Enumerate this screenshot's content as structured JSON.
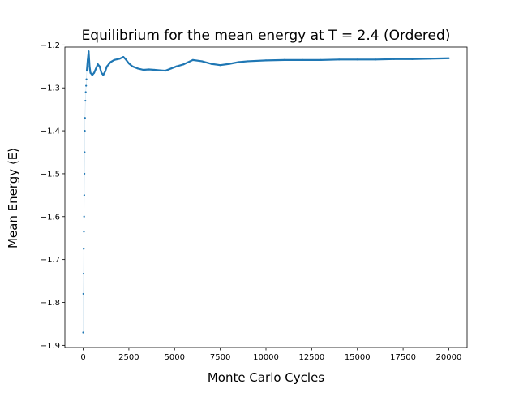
{
  "chart_data": {
    "type": "scatter",
    "title": "Equilibrium for the mean energy at T = 2.4 (Ordered)",
    "xlabel": "Monte Carlo Cycles",
    "ylabel": "Mean Energy ⟨E⟩",
    "xlim": [
      -1000,
      21000
    ],
    "ylim": [
      -1.905,
      -1.205
    ],
    "x_ticks": [
      0,
      2500,
      5000,
      7500,
      10000,
      12500,
      15000,
      17500,
      20000
    ],
    "y_ticks": [
      -1.9,
      -1.8,
      -1.7,
      -1.6,
      -1.5,
      -1.4,
      -1.3,
      -1.2
    ],
    "y_tick_labels": [
      "−1.9",
      "−1.8",
      "−1.7",
      "−1.6",
      "−1.5",
      "−1.4",
      "−1.3",
      "−1.2"
    ],
    "grid": false,
    "legend": "none",
    "color": "#1f77b4",
    "series": [
      {
        "x": [
          0,
          10,
          20,
          30,
          40,
          50,
          60,
          70,
          80,
          90,
          100,
          120,
          140,
          160,
          180,
          200,
          250,
          300,
          350,
          400,
          500,
          600,
          700,
          800,
          900,
          1000,
          1100,
          1200,
          1300,
          1400,
          1500,
          1700,
          1900,
          2000,
          2200,
          2300,
          2500,
          2700,
          3000,
          3300,
          3600,
          3900,
          4200,
          4500,
          4800,
          5100,
          5500,
          6000,
          6500,
          7000,
          7500,
          8000,
          8500,
          9000,
          10000,
          11000,
          12000,
          13000,
          14000,
          15000,
          16000,
          17000,
          18000,
          19000,
          20000
        ],
        "y": [
          -1.87,
          -1.78,
          -1.733,
          -1.675,
          -1.635,
          -1.6,
          -1.55,
          -1.5,
          -1.45,
          -1.4,
          -1.37,
          -1.33,
          -1.31,
          -1.295,
          -1.28,
          -1.26,
          -1.235,
          -1.215,
          -1.25,
          -1.265,
          -1.27,
          -1.265,
          -1.255,
          -1.245,
          -1.25,
          -1.265,
          -1.27,
          -1.262,
          -1.25,
          -1.245,
          -1.24,
          -1.235,
          -1.233,
          -1.232,
          -1.228,
          -1.232,
          -1.243,
          -1.25,
          -1.255,
          -1.258,
          -1.257,
          -1.258,
          -1.259,
          -1.26,
          -1.255,
          -1.25,
          -1.245,
          -1.235,
          -1.238,
          -1.244,
          -1.247,
          -1.244,
          -1.24,
          -1.238,
          -1.236,
          -1.235,
          -1.235,
          -1.235,
          -1.234,
          -1.234,
          -1.234,
          -1.233,
          -1.233,
          -1.232,
          -1.231
        ]
      }
    ]
  }
}
